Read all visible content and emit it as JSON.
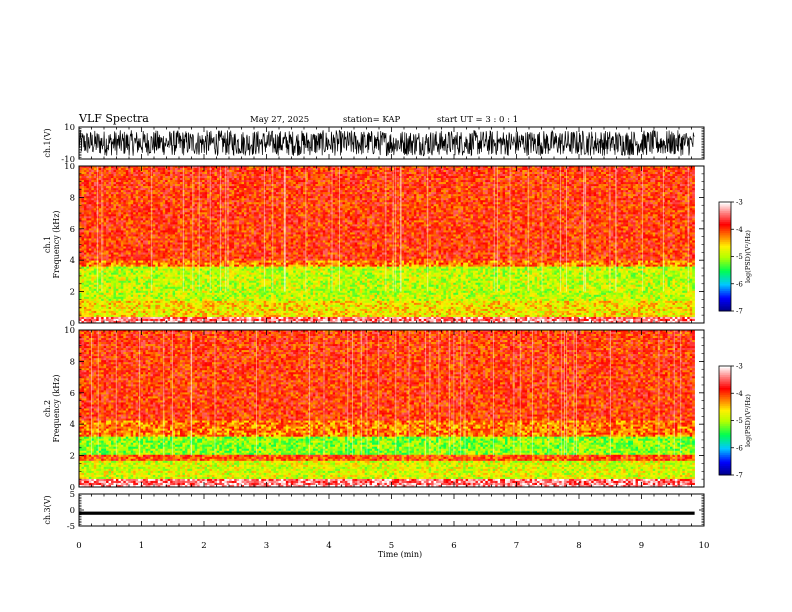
{
  "header": {
    "title": "VLF Spectra",
    "date": "May 27, 2025",
    "station": "station= KAP",
    "start": "start  UT  =   3  : 0   : 1"
  },
  "chart_data": [
    {
      "type": "line",
      "panel": "ch1-waveform",
      "ylabel": "ch.1(V)",
      "ylim": [
        -10,
        10
      ],
      "yticks": [
        "10",
        "-10"
      ],
      "xlim": [
        0,
        10
      ],
      "description_of_trace": "dense noise waveform spanning approx -8 V to +8 V over 0-9.85 min"
    },
    {
      "type": "heatmap",
      "panel": "ch1-spectrogram",
      "ylabel": "ch.1\nFrequency (kHz)",
      "ylim": [
        0,
        10
      ],
      "yticks": [
        "0",
        "2",
        "4",
        "6",
        "8",
        "10"
      ],
      "xlim": [
        0,
        10
      ],
      "data_end_min": 9.85,
      "bands": [
        {
          "f_from": 0.1,
          "f_to": 0.4,
          "level": -3.4
        },
        {
          "f_from": 0.4,
          "f_to": 1.4,
          "level": -4.6
        },
        {
          "f_from": 1.4,
          "f_to": 3.6,
          "level": -4.9
        },
        {
          "f_from": 3.6,
          "f_to": 4.0,
          "level": -4.2
        },
        {
          "f_from": 4.0,
          "f_to": 10.0,
          "level": -3.9
        }
      ],
      "colorbar": {
        "label": "log(PSD)(V²/Hz)",
        "ticks": [
          "-3",
          "-4",
          "-5",
          "-6",
          "-7"
        ],
        "range": [
          -7,
          -3
        ]
      }
    },
    {
      "type": "heatmap",
      "panel": "ch2-spectrogram",
      "ylabel": "ch.2\nFrequency (kHz)",
      "ylim": [
        0,
        10
      ],
      "yticks": [
        "0",
        "2",
        "4",
        "6",
        "8",
        "10"
      ],
      "xlim": [
        0,
        10
      ],
      "data_end_min": 9.85,
      "bands": [
        {
          "f_from": 0.1,
          "f_to": 0.5,
          "level": -3.4
        },
        {
          "f_from": 0.5,
          "f_to": 1.7,
          "level": -4.8
        },
        {
          "f_from": 1.7,
          "f_to": 2.1,
          "level": -4.0
        },
        {
          "f_from": 2.1,
          "f_to": 3.2,
          "level": -5.1
        },
        {
          "f_from": 3.2,
          "f_to": 4.2,
          "level": -4.2
        },
        {
          "f_from": 4.2,
          "f_to": 10.0,
          "level": -3.9
        }
      ],
      "colorbar": {
        "label": "log(PSD)(V²/Hz)",
        "ticks": [
          "-3",
          "-4",
          "-5",
          "-6",
          "-7"
        ],
        "range": [
          -7,
          -3
        ]
      }
    },
    {
      "type": "line",
      "panel": "ch3-waveform",
      "ylabel": "ch.3(V)",
      "ylim": [
        -5,
        5
      ],
      "yticks": [
        "5",
        "0",
        "-5"
      ],
      "xlim": [
        0,
        10
      ],
      "description_of_trace": "narrow band around -1 V over 0-9.85 min"
    }
  ],
  "xaxis": {
    "label": "Time  (min)",
    "ticks": [
      "0",
      "1",
      "2",
      "3",
      "4",
      "5",
      "6",
      "7",
      "8",
      "9",
      "10"
    ]
  },
  "colors": {
    "trace": "#000000",
    "axis": "#000000",
    "cmap": [
      "#00007f",
      "#0000ff",
      "#00ffff",
      "#00ff00",
      "#ffff00",
      "#ff7f00",
      "#ff0000",
      "#ffffff"
    ]
  }
}
